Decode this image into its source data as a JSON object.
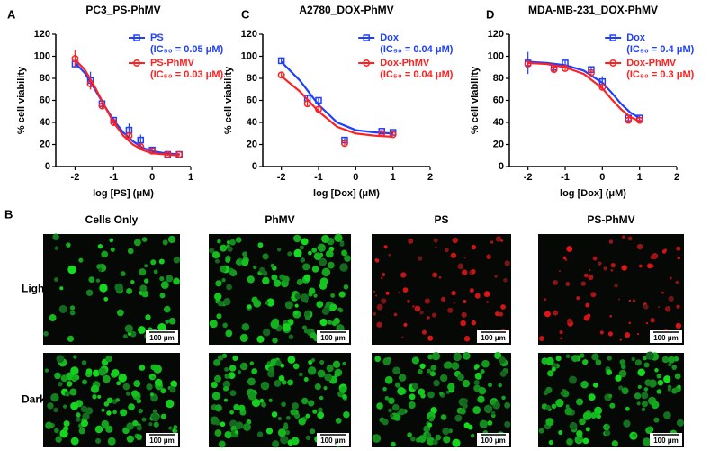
{
  "chart_data": [
    {
      "type": "scatter",
      "panel": "A",
      "title": "PC3_PS-PhMV",
      "x_label": "log [PS] (μM)",
      "y_label": "% cell viability",
      "xlim": [
        -2.5,
        1
      ],
      "xticks": [
        -2,
        -1,
        0,
        1
      ],
      "ylim": [
        0,
        120
      ],
      "yticks": [
        0,
        20,
        40,
        60,
        80,
        100,
        120
      ],
      "series": [
        {
          "name": "PS",
          "annotation": "(IC₅₀ = 0.05 μM)",
          "color": "#1f3fff",
          "marker": "square",
          "x": [
            -2,
            -1.6,
            -1.3,
            -1,
            -0.6,
            -0.3,
            0,
            0.4,
            0.7
          ],
          "values": [
            93,
            78,
            57,
            42,
            33,
            24,
            15,
            11,
            11
          ],
          "errors": [
            4,
            8,
            3,
            3,
            6,
            5,
            2,
            1,
            1
          ],
          "fit": {
            "x": [
              -2,
              -1.75,
              -1.5,
              -1.25,
              -1,
              -0.75,
              -0.5,
              -0.25,
              0,
              0.35,
              0.7
            ],
            "values": [
              94,
              85,
              71,
              56,
              42,
              31,
              23,
              17,
              14,
              12,
              11
            ]
          }
        },
        {
          "name": "PS-PhMV",
          "annotation": "(IC₅₀ = 0.03 μM)",
          "color": "#ff2020",
          "marker": "circle",
          "x": [
            -2,
            -1.6,
            -1.3,
            -1,
            -0.6,
            -0.3,
            0,
            0.4,
            0.7
          ],
          "values": [
            98,
            75,
            55,
            40,
            28,
            18,
            14,
            11,
            11
          ],
          "errors": [
            8,
            5,
            3,
            3,
            3,
            2,
            1,
            1,
            1
          ],
          "fit": {
            "x": [
              -2,
              -1.75,
              -1.5,
              -1.25,
              -1,
              -0.75,
              -0.5,
              -0.25,
              0,
              0.35,
              0.7
            ],
            "values": [
              97,
              88,
              73,
              56,
              40,
              28,
              20,
              15,
              12,
              11,
              10
            ]
          }
        }
      ]
    },
    {
      "type": "scatter",
      "panel": "C",
      "title": "A2780_DOX-PhMV",
      "x_label": "log [Dox] (μM)",
      "y_label": "% cell viability",
      "xlim": [
        -2.5,
        2
      ],
      "xticks": [
        -2,
        -1,
        0,
        1,
        2
      ],
      "ylim": [
        0,
        120
      ],
      "yticks": [
        0,
        20,
        40,
        60,
        80,
        100,
        120
      ],
      "series": [
        {
          "name": "Dox",
          "annotation": "(IC₅₀ = 0.04 μM)",
          "color": "#1f3fff",
          "marker": "square",
          "x": [
            -2,
            -1.3,
            -1,
            -0.3,
            0.7,
            1
          ],
          "values": [
            96,
            62,
            60,
            24,
            32,
            31
          ],
          "errors": [
            3,
            3,
            2,
            2,
            1,
            1
          ],
          "fit": {
            "x": [
              -2,
              -1.5,
              -1,
              -0.5,
              0,
              0.5,
              1
            ],
            "values": [
              95,
              78,
              56,
              40,
              33,
              31,
              30
            ]
          }
        },
        {
          "name": "Dox-PhMV",
          "annotation": "(IC₅₀ = 0.04 μM)",
          "color": "#ff2020",
          "marker": "circle",
          "x": [
            -2,
            -1.3,
            -1,
            -0.3,
            0.7,
            1
          ],
          "values": [
            83,
            57,
            52,
            21,
            30,
            29
          ],
          "errors": [
            2,
            2,
            2,
            2,
            1,
            1
          ],
          "fit": {
            "x": [
              -2,
              -1.5,
              -1,
              -0.5,
              0,
              0.5,
              1
            ],
            "values": [
              82,
              68,
              50,
              36,
              30,
              28,
              27
            ]
          }
        }
      ]
    },
    {
      "type": "scatter",
      "panel": "D",
      "title": "MDA-MB-231_DOX-PhMV",
      "x_label": "log [Dox] (μM)",
      "y_label": "% cell viability",
      "xlim": [
        -2.5,
        2
      ],
      "xticks": [
        -2,
        -1,
        0,
        1,
        2
      ],
      "ylim": [
        0,
        120
      ],
      "yticks": [
        0,
        20,
        40,
        60,
        80,
        100,
        120
      ],
      "series": [
        {
          "name": "Dox",
          "annotation": "(IC₅₀ = 0.4 μM)",
          "color": "#1f3fff",
          "marker": "square",
          "x": [
            -2,
            -1.3,
            -1,
            -0.3,
            0,
            0.7,
            1
          ],
          "values": [
            94,
            90,
            94,
            88,
            77,
            44,
            44
          ],
          "errors": [
            10,
            4,
            2,
            3,
            5,
            2,
            2
          ],
          "fit": {
            "x": [
              -2,
              -1.5,
              -1,
              -0.5,
              0,
              0.25,
              0.5,
              0.75,
              1
            ],
            "values": [
              95,
              94,
              92,
              87,
              76,
              67,
              57,
              49,
              44
            ]
          }
        },
        {
          "name": "Dox-PhMV",
          "annotation": "(IC₅₀ = 0.3 μM)",
          "color": "#ff2020",
          "marker": "circle",
          "x": [
            -2,
            -1.3,
            -1,
            -0.3,
            0,
            0.7,
            1
          ],
          "values": [
            93,
            88,
            89,
            85,
            72,
            42,
            42
          ],
          "errors": [
            3,
            3,
            2,
            2,
            3,
            2,
            2
          ],
          "fit": {
            "x": [
              -2,
              -1.5,
              -1,
              -0.5,
              0,
              0.25,
              0.5,
              0.75,
              1
            ],
            "values": [
              94,
              93,
              90,
              84,
              71,
              61,
              52,
              45,
              41
            ]
          }
        }
      ]
    }
  ],
  "panel_b": {
    "label": "B",
    "columns": [
      "Cells Only",
      "PhMV",
      "PS",
      "PS-PhMV"
    ],
    "rows": [
      "Light",
      "Dark"
    ],
    "scale_bar": "100 μm"
  }
}
